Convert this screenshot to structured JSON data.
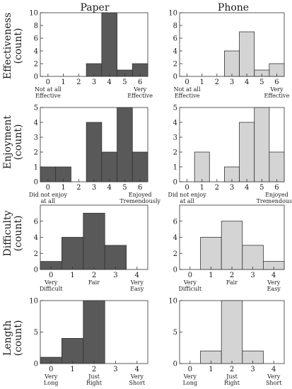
{
  "columns": [
    "Paper",
    "Phone"
  ],
  "rows": [
    {
      "label": "Effectiveness",
      "unit": "(count)"
    },
    {
      "label": "Enjoyment",
      "unit": "(count)"
    },
    {
      "label": "Difficulty",
      "unit": "(count)"
    },
    {
      "label": "Length",
      "unit": "(count)"
    }
  ],
  "chart_data": [
    {
      "type": "bar",
      "row": "Effectiveness",
      "column": "Paper",
      "color": "#595959",
      "categories": [
        "0",
        "1",
        "2",
        "3",
        "4",
        "5",
        "6"
      ],
      "values": [
        0,
        0,
        0,
        2,
        10,
        1,
        2
      ],
      "ylim": [
        0,
        10
      ],
      "yticks": [
        0,
        2,
        4,
        6,
        8,
        10
      ],
      "anchors": [
        {
          "at": "0",
          "lines": [
            "Not at all",
            "Effective"
          ]
        },
        {
          "at": "6",
          "lines": [
            "Very",
            "Effective"
          ]
        }
      ]
    },
    {
      "type": "bar",
      "row": "Effectiveness",
      "column": "Phone",
      "color": "#d4d4d4",
      "categories": [
        "0",
        "1",
        "2",
        "3",
        "4",
        "5",
        "6"
      ],
      "values": [
        0,
        0,
        0,
        4,
        7,
        1,
        2
      ],
      "ylim": [
        0,
        10
      ],
      "yticks": [
        0,
        2,
        4,
        6,
        8,
        10
      ],
      "anchors": [
        {
          "at": "0",
          "lines": [
            "Not at all",
            "Effective"
          ]
        },
        {
          "at": "6",
          "lines": [
            "Very",
            "Effective"
          ]
        }
      ]
    },
    {
      "type": "bar",
      "row": "Enjoyment",
      "column": "Paper",
      "color": "#595959",
      "categories": [
        "0",
        "1",
        "2",
        "3",
        "4",
        "5",
        "6"
      ],
      "values": [
        1,
        1,
        0,
        4,
        2,
        5,
        2
      ],
      "ylim": [
        0,
        5
      ],
      "yticks": [
        0,
        1,
        2,
        3,
        4,
        5
      ],
      "anchors": [
        {
          "at": "0",
          "lines": [
            "Did not enjoy",
            "at all"
          ]
        },
        {
          "at": "6",
          "lines": [
            "Enjoyed",
            "Tremendously"
          ]
        }
      ]
    },
    {
      "type": "bar",
      "row": "Enjoyment",
      "column": "Phone",
      "color": "#d4d4d4",
      "categories": [
        "0",
        "1",
        "2",
        "3",
        "4",
        "5",
        "6"
      ],
      "values": [
        0,
        2,
        0,
        1,
        4,
        5,
        2
      ],
      "ylim": [
        0,
        5
      ],
      "yticks": [
        0,
        1,
        2,
        3,
        4,
        5
      ],
      "anchors": [
        {
          "at": "0",
          "lines": [
            "Did not enjoy",
            "at all"
          ]
        },
        {
          "at": "6",
          "lines": [
            "Enjoyed",
            "Tremendously"
          ]
        }
      ]
    },
    {
      "type": "bar",
      "row": "Difficulty",
      "column": "Paper",
      "color": "#595959",
      "categories": [
        "0",
        "1",
        "2",
        "3",
        "4"
      ],
      "values": [
        1,
        4,
        7,
        3,
        0
      ],
      "ylim": [
        0,
        8
      ],
      "yticks": [
        0,
        2,
        4,
        6
      ],
      "anchors": [
        {
          "at": "0",
          "lines": [
            "Very",
            "Difficult"
          ]
        },
        {
          "at": "2",
          "lines": [
            "Fair"
          ]
        },
        {
          "at": "4",
          "lines": [
            "Very",
            "Easy"
          ]
        }
      ]
    },
    {
      "type": "bar",
      "row": "Difficulty",
      "column": "Phone",
      "color": "#d4d4d4",
      "categories": [
        "0",
        "1",
        "2",
        "3",
        "4"
      ],
      "values": [
        0,
        4,
        6,
        3,
        1
      ],
      "ylim": [
        0,
        8
      ],
      "yticks": [
        0,
        2,
        4,
        6
      ],
      "anchors": [
        {
          "at": "0",
          "lines": [
            "Very",
            "Difficult"
          ]
        },
        {
          "at": "2",
          "lines": [
            "Fair"
          ]
        },
        {
          "at": "4",
          "lines": [
            "Very",
            "Easy"
          ]
        }
      ]
    },
    {
      "type": "bar",
      "row": "Length",
      "column": "Paper",
      "color": "#595959",
      "categories": [
        "0",
        "1",
        "2",
        "3",
        "4"
      ],
      "values": [
        1,
        4,
        10,
        0,
        0
      ],
      "ylim": [
        0,
        10
      ],
      "yticks": [
        0,
        5,
        10
      ],
      "anchors": [
        {
          "at": "0",
          "lines": [
            "Very",
            "Long"
          ]
        },
        {
          "at": "2",
          "lines": [
            "Just",
            "Right"
          ]
        },
        {
          "at": "4",
          "lines": [
            "Very",
            "Short"
          ]
        }
      ]
    },
    {
      "type": "bar",
      "row": "Length",
      "column": "Phone",
      "color": "#d4d4d4",
      "categories": [
        "0",
        "1",
        "2",
        "3",
        "4"
      ],
      "values": [
        0,
        2,
        10,
        2,
        0
      ],
      "ylim": [
        0,
        10
      ],
      "yticks": [
        0,
        5,
        10
      ],
      "anchors": [
        {
          "at": "0",
          "lines": [
            "Very",
            "Long"
          ]
        },
        {
          "at": "2",
          "lines": [
            "Just",
            "Right"
          ]
        },
        {
          "at": "4",
          "lines": [
            "Very",
            "Short"
          ]
        }
      ]
    }
  ]
}
